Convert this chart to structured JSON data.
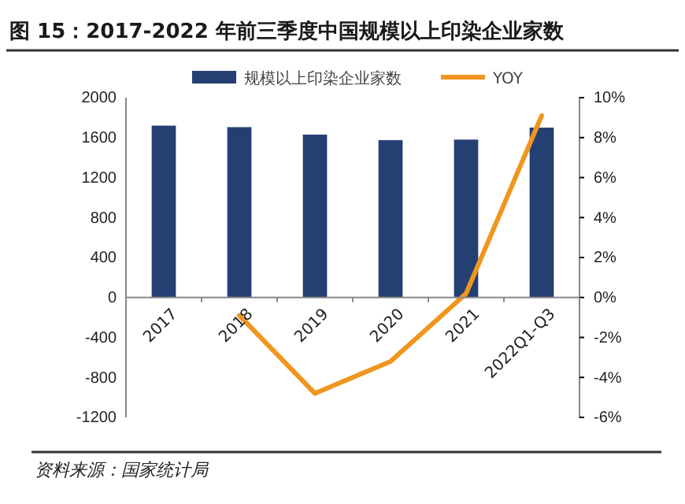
{
  "chart_data": {
    "type": "bar",
    "title": "图 15：2017-2022 年前三季度中国规模以上印染企业家数",
    "categories": [
      "2017",
      "2018",
      "2019",
      "2020",
      "2021",
      "2022Q1-Q3"
    ],
    "series": [
      {
        "name": "规模以上印染企业家数",
        "color": "#243f72",
        "values": [
          1720,
          1705,
          1630,
          1575,
          1580,
          1700
        ]
      },
      {
        "name": "YOY",
        "type": "line",
        "axis": "y2",
        "color": "#f0961e",
        "marker": "none",
        "values": [
          null,
          -0.9,
          -4.8,
          -3.2,
          0.2,
          9.1
        ]
      }
    ],
    "ylim": [
      -1200,
      2000
    ],
    "yticks": [
      -1200,
      -800,
      -400,
      0,
      400,
      800,
      1200,
      1600,
      2000
    ],
    "y2lim": [
      -6,
      10
    ],
    "y2ticks": [
      {
        "value": -6,
        "label": "-6%"
      },
      {
        "value": -4,
        "label": "-4%"
      },
      {
        "value": -2,
        "label": "-2%"
      },
      {
        "value": 0,
        "label": "0%"
      },
      {
        "value": 2,
        "label": "2%"
      },
      {
        "value": 4,
        "label": "4%"
      },
      {
        "value": 6,
        "label": "6%"
      },
      {
        "value": 8,
        "label": "8%"
      },
      {
        "value": 10,
        "label": "10%"
      }
    ],
    "legend": "top",
    "grid": false,
    "annotations": [
      "资料来源：国家统计局"
    ]
  }
}
